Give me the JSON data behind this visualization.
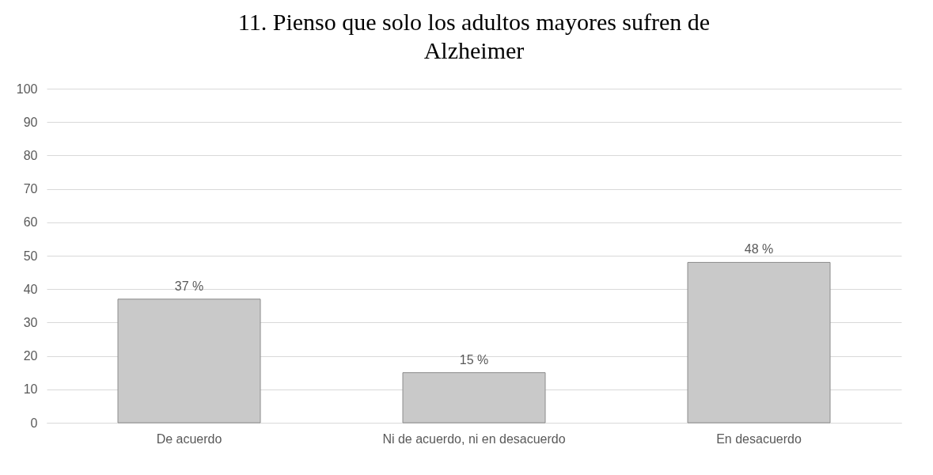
{
  "chart_data": {
    "type": "bar",
    "title": "11. Pienso que solo los adultos mayores sufren de Alzheimer",
    "categories": [
      "De acuerdo",
      "Ni de acuerdo, ni en desacuerdo",
      "En desacuerdo"
    ],
    "values": [
      37,
      15,
      48
    ],
    "value_labels": [
      "37 %",
      "15 %",
      "48 %"
    ],
    "color": "#c9c9c9",
    "ylim": [
      0,
      100
    ],
    "yticks": [
      0,
      10,
      20,
      30,
      40,
      50,
      60,
      70,
      80,
      90,
      100
    ],
    "grid": "y"
  }
}
